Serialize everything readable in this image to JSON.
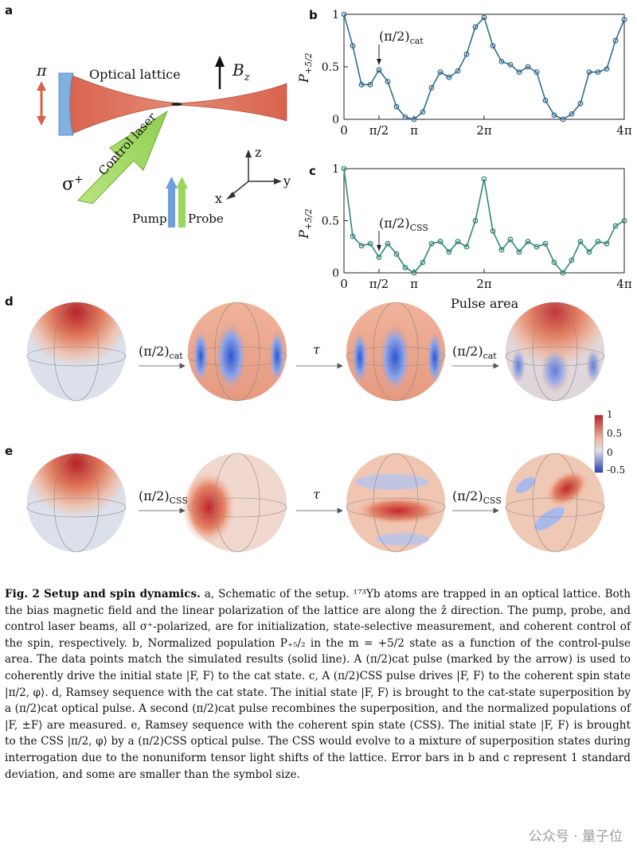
{
  "panels": {
    "a": "a",
    "b": "b",
    "c": "c",
    "d": "d",
    "e": "e"
  },
  "schematic": {
    "pi_label": "π",
    "lattice_label": "Optical lattice",
    "field_label": "B",
    "field_sub": "z",
    "sigma_label": "σ",
    "sigma_sup": "+",
    "control_label": "Control laser",
    "pump_label": "Pump",
    "probe_label": "Probe",
    "axis_x": "x",
    "axis_y": "y",
    "axis_z": "z",
    "colors": {
      "lattice": "#e07a66",
      "mirror": "#7fb0e0",
      "control": "#9ad65a",
      "pump": "#6e9fe0",
      "probe": "#9ad65a",
      "arrow": "#d9604a"
    }
  },
  "plot_b": {
    "ylabel": "P",
    "ylabel_sub": "+5/2",
    "annotation": "(π/2)",
    "annotation_sub": "cat",
    "yticks": [
      "0",
      "0.5",
      "1"
    ],
    "xticks": [
      "0",
      "π/2",
      "π",
      "2π",
      "4π"
    ]
  },
  "plot_c": {
    "ylabel": "P",
    "ylabel_sub": "+5/2",
    "annotation": "(π/2)",
    "annotation_sub": "CSS",
    "yticks": [
      "0",
      "0.5",
      "1"
    ],
    "xticks": [
      "0",
      "π/2",
      "π",
      "2π",
      "4π"
    ],
    "xlabel": "Pulse area"
  },
  "chart_data": [
    {
      "type": "line",
      "panel": "b",
      "x_unit": "pulse area (π)",
      "x": [
        0,
        0.125,
        0.25,
        0.375,
        0.5,
        0.625,
        0.75,
        0.875,
        1.0,
        1.125,
        1.25,
        1.375,
        1.5,
        1.625,
        1.75,
        1.875,
        2.0,
        2.125,
        2.25,
        2.375,
        2.5,
        2.625,
        2.75,
        2.875,
        3.0,
        3.125,
        3.25,
        3.375,
        3.5,
        3.625,
        3.75,
        3.875,
        4.0
      ],
      "series": [
        {
          "values": [
            1.0,
            0.7,
            0.33,
            0.33,
            0.47,
            0.36,
            0.12,
            0.02,
            0.0,
            0.07,
            0.3,
            0.45,
            0.4,
            0.46,
            0.62,
            0.88,
            0.97,
            0.7,
            0.55,
            0.52,
            0.45,
            0.5,
            0.45,
            0.18,
            0.04,
            0.0,
            0.05,
            0.15,
            0.45,
            0.45,
            0.48,
            0.75,
            0.95
          ]
        }
      ],
      "ylim": [
        0,
        1
      ],
      "xlim": [
        0,
        4
      ]
    },
    {
      "type": "line",
      "panel": "c",
      "x_unit": "pulse area (π)",
      "x": [
        0,
        0.125,
        0.25,
        0.375,
        0.5,
        0.625,
        0.75,
        0.875,
        1.0,
        1.125,
        1.25,
        1.375,
        1.5,
        1.625,
        1.75,
        1.875,
        2.0,
        2.125,
        2.25,
        2.375,
        2.5,
        2.625,
        2.75,
        2.875,
        3.0,
        3.125,
        3.25,
        3.375,
        3.5,
        3.625,
        3.75,
        3.875,
        4.0
      ],
      "series": [
        {
          "values": [
            1.0,
            0.35,
            0.26,
            0.28,
            0.15,
            0.28,
            0.18,
            0.05,
            0.0,
            0.1,
            0.28,
            0.3,
            0.2,
            0.3,
            0.25,
            0.5,
            0.9,
            0.4,
            0.22,
            0.32,
            0.2,
            0.3,
            0.25,
            0.28,
            0.1,
            0.0,
            0.12,
            0.3,
            0.2,
            0.3,
            0.28,
            0.45,
            0.5
          ]
        }
      ],
      "ylim": [
        0,
        1
      ],
      "xlim": [
        0,
        4
      ]
    }
  ],
  "sequence": {
    "cat_pulse": "(π/2)",
    "cat_sub": "cat",
    "tau": "τ",
    "css_pulse": "(π/2)",
    "css_sub": "CSS"
  },
  "colorbar": {
    "ticks": [
      "1",
      "0.5",
      "0",
      "-0.5"
    ]
  },
  "caption": {
    "title": "Fig. 2  Setup and spin dynamics.",
    "text": " a, Schematic of the setup. ¹⁷³Yb atoms are trapped in an optical lattice. Both the bias magnetic field and the linear polarization of the lattice are along the ẑ direction. The pump, probe, and control laser beams, all σ⁺-polarized, are for initialization, state-selective measurement, and coherent control of the spin, respectively. b, Normalized population P₊₅/₂ in the m = +5/2 state as a function of the control-pulse area. The data points match the simulated results (solid line). A (π/2)cat pulse (marked by the arrow) is used to coherently drive the initial state |F, F⟩ to the cat state. c, A (π/2)CSS pulse drives |F, F⟩ to the coherent spin state |π/2, φ⟩. d, Ramsey sequence with the cat state. The initial state |F, F⟩ is brought to the cat-state superposition by a (π/2)cat optical pulse. A second (π/2)cat pulse recombines the superposition, and the normalized populations of |F, ±F⟩ are measured. e, Ramsey sequence with the coherent spin state (CSS). The initial state |F, F⟩ is brought to the CSS |π/2, φ⟩ by a (π/2)CSS optical pulse. The CSS would evolve to a mixture of superposition states during interrogation due to the nonuniform tensor light shifts of the lattice. Error bars in b and c represent 1 standard deviation, and some are smaller than the symbol size."
  },
  "watermark": "公众号 · 量子位"
}
